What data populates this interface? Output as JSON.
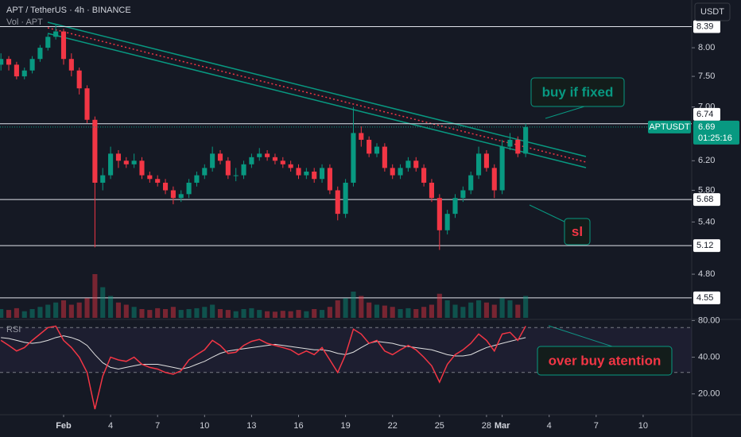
{
  "chart_data": {
    "type": "candlestick",
    "title": "APT / TetherUS · 4h · BINANCE",
    "subtitle": "Vol · APT",
    "currency": "USDT",
    "x": [
      -4,
      -3.5,
      -3,
      -2.5,
      -2,
      -1.5,
      -1,
      -0.5,
      0,
      0.5,
      1,
      1.5,
      2,
      2.5,
      3,
      3.5,
      4,
      4.5,
      5,
      5.5,
      6,
      6.5,
      7,
      7.5,
      8,
      8.5,
      9,
      9.5,
      10,
      10.5,
      11,
      11.5,
      12,
      12.5,
      13,
      13.5,
      14,
      14.5,
      15,
      15.5,
      16,
      16.5,
      17,
      17.5,
      18,
      18.5,
      19,
      19.5,
      20,
      20.5,
      21,
      21.5,
      22,
      22.5,
      23,
      23.5,
      24,
      24.5,
      25,
      25.5,
      26,
      26.5,
      27,
      27.5,
      28,
      28.5,
      29,
      29.5
    ],
    "open": [
      7.7,
      7.8,
      7.7,
      7.5,
      7.6,
      7.8,
      8.0,
      8.2,
      8.3,
      7.8,
      7.6,
      7.3,
      6.8,
      5.9,
      6.0,
      6.3,
      6.2,
      6.15,
      6.2,
      6.0,
      5.95,
      5.9,
      5.8,
      5.7,
      5.75,
      5.9,
      6.0,
      6.1,
      6.3,
      6.2,
      6.0,
      6.0,
      6.15,
      6.25,
      6.3,
      6.25,
      6.2,
      6.15,
      6.1,
      6.0,
      6.05,
      5.95,
      6.1,
      5.8,
      5.5,
      5.9,
      6.6,
      6.5,
      6.3,
      6.4,
      6.1,
      6.0,
      6.1,
      6.2,
      6.1,
      5.9,
      5.7,
      5.3,
      5.5,
      5.7,
      5.8,
      6.0,
      6.3,
      6.1,
      5.8,
      6.4,
      6.5,
      6.3
    ],
    "high": [
      7.9,
      7.85,
      7.75,
      7.65,
      7.85,
      8.05,
      8.25,
      8.42,
      8.35,
      7.9,
      7.65,
      7.35,
      6.85,
      6.1,
      6.4,
      6.35,
      6.25,
      6.3,
      6.25,
      6.05,
      6.0,
      5.95,
      5.85,
      5.8,
      5.95,
      6.05,
      6.15,
      6.4,
      6.35,
      6.25,
      6.1,
      6.2,
      6.3,
      6.38,
      6.35,
      6.3,
      6.25,
      6.2,
      6.15,
      6.1,
      6.1,
      6.15,
      6.15,
      5.85,
      5.95,
      7.0,
      6.7,
      6.55,
      6.45,
      6.45,
      6.15,
      6.15,
      6.25,
      6.25,
      6.15,
      5.95,
      5.75,
      5.55,
      5.75,
      5.85,
      6.05,
      6.4,
      6.35,
      6.15,
      6.5,
      6.6,
      6.55,
      6.74
    ],
    "low": [
      7.6,
      7.6,
      7.45,
      7.45,
      7.55,
      7.75,
      7.95,
      8.15,
      7.7,
      7.5,
      7.2,
      6.75,
      5.1,
      5.8,
      5.95,
      6.1,
      6.1,
      6.1,
      5.95,
      5.9,
      5.85,
      5.75,
      5.62,
      5.65,
      5.7,
      5.85,
      5.95,
      6.05,
      6.15,
      5.95,
      5.92,
      5.95,
      6.1,
      6.2,
      6.2,
      6.15,
      6.1,
      6.05,
      5.95,
      5.95,
      5.9,
      5.9,
      5.75,
      5.42,
      5.45,
      5.85,
      6.4,
      6.25,
      6.25,
      6.05,
      5.95,
      5.95,
      6.05,
      6.05,
      5.85,
      5.65,
      5.07,
      5.25,
      5.45,
      5.65,
      5.75,
      5.95,
      6.05,
      5.7,
      5.75,
      6.35,
      6.25,
      6.25
    ],
    "close": [
      7.8,
      7.7,
      7.5,
      7.6,
      7.8,
      8.0,
      8.2,
      8.3,
      7.8,
      7.6,
      7.3,
      6.8,
      5.9,
      6.0,
      6.3,
      6.2,
      6.15,
      6.2,
      6.0,
      5.95,
      5.9,
      5.8,
      5.7,
      5.75,
      5.9,
      6.0,
      6.1,
      6.3,
      6.2,
      6.0,
      6.0,
      6.15,
      6.25,
      6.3,
      6.25,
      6.2,
      6.15,
      6.1,
      6.0,
      6.05,
      5.95,
      6.1,
      5.8,
      5.5,
      5.9,
      6.6,
      6.5,
      6.3,
      6.4,
      6.1,
      6.0,
      6.1,
      6.2,
      6.1,
      5.9,
      5.7,
      5.3,
      5.5,
      5.7,
      5.8,
      6.0,
      6.3,
      6.1,
      5.8,
      6.4,
      6.5,
      6.3,
      6.69
    ],
    "volume": [
      20,
      18,
      22,
      15,
      20,
      25,
      30,
      35,
      40,
      30,
      35,
      45,
      100,
      70,
      50,
      35,
      30,
      25,
      20,
      18,
      22,
      20,
      25,
      18,
      20,
      22,
      25,
      30,
      20,
      18,
      15,
      20,
      22,
      18,
      15,
      14,
      16,
      15,
      18,
      15,
      20,
      18,
      25,
      40,
      45,
      60,
      50,
      35,
      30,
      28,
      25,
      20,
      22,
      20,
      25,
      30,
      55,
      40,
      30,
      25,
      35,
      40,
      35,
      30,
      45,
      40,
      30,
      50
    ],
    "volume_lim": [
      0,
      100
    ],
    "colors": {
      "up": "#089981",
      "down": "#f23645"
    },
    "log_scale": true,
    "ylim": [
      4.35,
      8.91
    ],
    "yticks": [
      {
        "value": 4.8,
        "label": "4.80"
      },
      {
        "value": 5.4,
        "label": "5.40"
      },
      {
        "value": 5.8,
        "label": "5.80"
      },
      {
        "value": 6.2,
        "label": "6.20"
      },
      {
        "value": 7,
        "label": "7.00"
      },
      {
        "value": 7.5,
        "label": "7.50"
      },
      {
        "value": 8,
        "label": "8.00"
      }
    ],
    "xlim": [
      -4.06,
      40.1
    ],
    "xticks": [
      {
        "value": 0,
        "label": "Feb"
      },
      {
        "value": 3,
        "label": "4"
      },
      {
        "value": 6,
        "label": "7"
      },
      {
        "value": 9,
        "label": "10"
      },
      {
        "value": 12,
        "label": "13"
      },
      {
        "value": 15,
        "label": "16"
      },
      {
        "value": 18,
        "label": "19"
      },
      {
        "value": 21,
        "label": "22"
      },
      {
        "value": 24,
        "label": "25"
      },
      {
        "value": 27,
        "label": "28"
      },
      {
        "value": 28,
        "label": "Mar"
      },
      {
        "value": 31,
        "label": "4"
      },
      {
        "value": 34,
        "label": "7"
      },
      {
        "value": 37,
        "label": "10"
      }
    ],
    "levels": [
      8.39,
      6.74,
      5.68,
      5.12,
      4.55
    ],
    "last_price": {
      "symbol": "APTUSDT",
      "value": 6.69,
      "countdown": "01:25:16"
    },
    "rsi": {
      "title": "RSI",
      "color": "#f23645",
      "ma_color": "#e0e0e0",
      "log_scale": true,
      "values": [
        55,
        50,
        45,
        48,
        55,
        62,
        70,
        72,
        55,
        48,
        40,
        30,
        15,
        28,
        40,
        38,
        37,
        40,
        35,
        33,
        32,
        30,
        29,
        31,
        38,
        42,
        46,
        55,
        50,
        43,
        44,
        50,
        54,
        56,
        52,
        50,
        48,
        46,
        42,
        45,
        42,
        48,
        38,
        30,
        42,
        68,
        62,
        52,
        55,
        45,
        42,
        46,
        50,
        46,
        40,
        34,
        25,
        35,
        42,
        46,
        52,
        62,
        55,
        45,
        62,
        64,
        55,
        72
      ],
      "ma": [
        58,
        57,
        55,
        53,
        52,
        53,
        55,
        58,
        60,
        58,
        55,
        50,
        42,
        36,
        33,
        32,
        33,
        34,
        35,
        35,
        35,
        34,
        33,
        32,
        33,
        35,
        37,
        40,
        43,
        45,
        46,
        47,
        48,
        49,
        50,
        51,
        50,
        49,
        48,
        47,
        46,
        46,
        45,
        43,
        42,
        44,
        48,
        52,
        54,
        53,
        52,
        50,
        49,
        48,
        47,
        46,
        44,
        42,
        41,
        41,
        42,
        45,
        48,
        50,
        52,
        54,
        56,
        58
      ],
      "ylim": [
        13.9,
        80.5
      ],
      "yticks": [
        {
          "value": 20,
          "label": "20.00"
        },
        {
          "value": 40,
          "label": "40.00"
        },
        {
          "value": 80,
          "label": "80.00"
        }
      ],
      "bands": [
        30,
        70
      ]
    },
    "annotations": [
      {
        "text": "buy if fixed",
        "color": "#089981"
      },
      {
        "text": "sl",
        "color": "#f23645"
      },
      {
        "text": "over buy atention",
        "color": "#f23645"
      }
    ]
  }
}
